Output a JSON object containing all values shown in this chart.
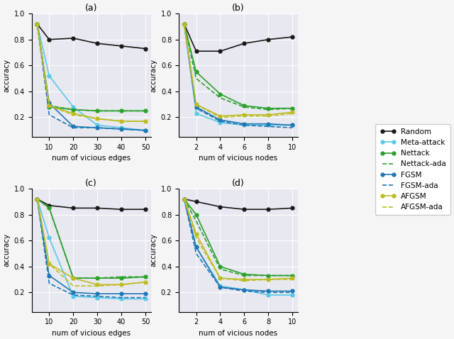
{
  "panels": {
    "a": {
      "title": "(a)",
      "xlabel": "num of vicious edges",
      "ylabel": "accuracy",
      "x": [
        5,
        10,
        20,
        30,
        40,
        50
      ],
      "series": {
        "Random": {
          "y": [
            0.92,
            0.8,
            0.81,
            0.77,
            0.75,
            0.73
          ],
          "color": "#1a1a1a",
          "ls": "-",
          "marker": "o"
        },
        "Meta-attack": {
          "y": [
            0.92,
            0.52,
            0.28,
            0.14,
            0.12,
            0.1
          ],
          "color": "#5bc8e8",
          "ls": "-",
          "marker": "o"
        },
        "Nettack": {
          "y": [
            0.92,
            0.28,
            0.26,
            0.25,
            0.25,
            0.25
          ],
          "color": "#2ca02c",
          "ls": "-",
          "marker": "o"
        },
        "Nettack-ada": {
          "y": [
            0.92,
            0.29,
            0.26,
            0.25,
            0.25,
            0.25
          ],
          "color": "#2ca02c",
          "ls": "--",
          "marker": null
        },
        "FGSM": {
          "y": [
            0.92,
            0.31,
            0.13,
            0.12,
            0.11,
            0.1
          ],
          "color": "#1f77b4",
          "ls": "-",
          "marker": "o"
        },
        "FGSM-ada": {
          "y": [
            0.92,
            0.22,
            0.12,
            0.12,
            0.11,
            0.1
          ],
          "color": "#1f77b4",
          "ls": "--",
          "marker": null
        },
        "AFGSM": {
          "y": [
            0.92,
            0.29,
            0.23,
            0.19,
            0.17,
            0.17
          ],
          "color": "#bcbd22",
          "ls": "-",
          "marker": "o"
        },
        "AFGSM-ada": {
          "y": [
            0.92,
            0.29,
            0.22,
            0.19,
            0.17,
            0.17
          ],
          "color": "#bcbd22",
          "ls": "--",
          "marker": null
        }
      }
    },
    "b": {
      "title": "(b)",
      "xlabel": "num of vicious nodes",
      "ylabel": "accuracy",
      "x": [
        1,
        2,
        4,
        6,
        8,
        10
      ],
      "series": {
        "Random": {
          "y": [
            0.92,
            0.71,
            0.71,
            0.77,
            0.8,
            0.82
          ],
          "color": "#1a1a1a",
          "ls": "-",
          "marker": "o"
        },
        "Meta-attack": {
          "y": [
            0.92,
            0.23,
            0.16,
            0.14,
            0.14,
            0.14
          ],
          "color": "#5bc8e8",
          "ls": "-",
          "marker": "o"
        },
        "Nettack": {
          "y": [
            0.92,
            0.55,
            0.38,
            0.29,
            0.27,
            0.27
          ],
          "color": "#2ca02c",
          "ls": "-",
          "marker": "o"
        },
        "Nettack-ada": {
          "y": [
            0.92,
            0.5,
            0.35,
            0.28,
            0.26,
            0.27
          ],
          "color": "#2ca02c",
          "ls": "--",
          "marker": null
        },
        "FGSM": {
          "y": [
            0.92,
            0.28,
            0.18,
            0.15,
            0.15,
            0.14
          ],
          "color": "#1f77b4",
          "ls": "-",
          "marker": "o"
        },
        "FGSM-ada": {
          "y": [
            0.92,
            0.27,
            0.17,
            0.14,
            0.13,
            0.12
          ],
          "color": "#1f77b4",
          "ls": "--",
          "marker": null
        },
        "AFGSM": {
          "y": [
            0.92,
            0.3,
            0.21,
            0.22,
            0.22,
            0.24
          ],
          "color": "#bcbd22",
          "ls": "-",
          "marker": "o"
        },
        "AFGSM-ada": {
          "y": [
            0.92,
            0.3,
            0.2,
            0.21,
            0.21,
            0.23
          ],
          "color": "#bcbd22",
          "ls": "--",
          "marker": null
        }
      }
    },
    "c": {
      "title": "(c)",
      "xlabel": "num of vicious edges",
      "ylabel": "accuracy",
      "x": [
        5,
        10,
        20,
        30,
        40,
        50
      ],
      "series": {
        "Random": {
          "y": [
            0.92,
            0.87,
            0.85,
            0.85,
            0.84,
            0.84
          ],
          "color": "#1a1a1a",
          "ls": "-",
          "marker": "o"
        },
        "Meta-attack": {
          "y": [
            0.92,
            0.62,
            0.17,
            0.16,
            0.15,
            0.15
          ],
          "color": "#5bc8e8",
          "ls": "-",
          "marker": "o"
        },
        "Nettack": {
          "y": [
            0.92,
            0.85,
            0.31,
            0.31,
            0.31,
            0.32
          ],
          "color": "#2ca02c",
          "ls": "-",
          "marker": "o"
        },
        "Nettack-ada": {
          "y": [
            0.92,
            0.85,
            0.31,
            0.31,
            0.32,
            0.32
          ],
          "color": "#2ca02c",
          "ls": "--",
          "marker": null
        },
        "FGSM": {
          "y": [
            0.92,
            0.33,
            0.2,
            0.19,
            0.19,
            0.19
          ],
          "color": "#1f77b4",
          "ls": "-",
          "marker": "o"
        },
        "FGSM-ada": {
          "y": [
            0.92,
            0.27,
            0.18,
            0.17,
            0.16,
            0.16
          ],
          "color": "#1f77b4",
          "ls": "--",
          "marker": null
        },
        "AFGSM": {
          "y": [
            0.92,
            0.42,
            0.31,
            0.26,
            0.26,
            0.28
          ],
          "color": "#bcbd22",
          "ls": "-",
          "marker": "o"
        },
        "AFGSM-ada": {
          "y": [
            0.92,
            0.42,
            0.25,
            0.25,
            0.26,
            0.28
          ],
          "color": "#bcbd22",
          "ls": "--",
          "marker": null
        }
      }
    },
    "d": {
      "title": "(d)",
      "xlabel": "num of vicious nodes",
      "ylabel": "accuracy",
      "x": [
        1,
        2,
        4,
        6,
        8,
        10
      ],
      "series": {
        "Random": {
          "y": [
            0.92,
            0.9,
            0.86,
            0.84,
            0.84,
            0.85
          ],
          "color": "#1a1a1a",
          "ls": "-",
          "marker": "o"
        },
        "Meta-attack": {
          "y": [
            0.92,
            0.55,
            0.25,
            0.22,
            0.18,
            0.18
          ],
          "color": "#5bc8e8",
          "ls": "-",
          "marker": "o"
        },
        "Nettack": {
          "y": [
            0.92,
            0.8,
            0.4,
            0.34,
            0.33,
            0.33
          ],
          "color": "#2ca02c",
          "ls": "-",
          "marker": "o"
        },
        "Nettack-ada": {
          "y": [
            0.92,
            0.75,
            0.38,
            0.33,
            0.33,
            0.33
          ],
          "color": "#2ca02c",
          "ls": "--",
          "marker": null
        },
        "FGSM": {
          "y": [
            0.92,
            0.55,
            0.24,
            0.22,
            0.21,
            0.21
          ],
          "color": "#1f77b4",
          "ls": "-",
          "marker": "o"
        },
        "FGSM-ada": {
          "y": [
            0.92,
            0.5,
            0.24,
            0.21,
            0.2,
            0.2
          ],
          "color": "#1f77b4",
          "ls": "--",
          "marker": null
        },
        "AFGSM": {
          "y": [
            0.92,
            0.65,
            0.31,
            0.3,
            0.3,
            0.31
          ],
          "color": "#bcbd22",
          "ls": "-",
          "marker": "o"
        },
        "AFGSM-ada": {
          "y": [
            0.92,
            0.62,
            0.31,
            0.29,
            0.3,
            0.3
          ],
          "color": "#bcbd22",
          "ls": "--",
          "marker": null
        }
      }
    }
  },
  "legend_order": [
    "Random",
    "Meta-attack",
    "Nettack",
    "Nettack-ada",
    "FGSM",
    "FGSM-ada",
    "AFGSM",
    "AFGSM-ada"
  ],
  "bg_color": "#e8e8f0",
  "fig_color": "#f5f5f5"
}
